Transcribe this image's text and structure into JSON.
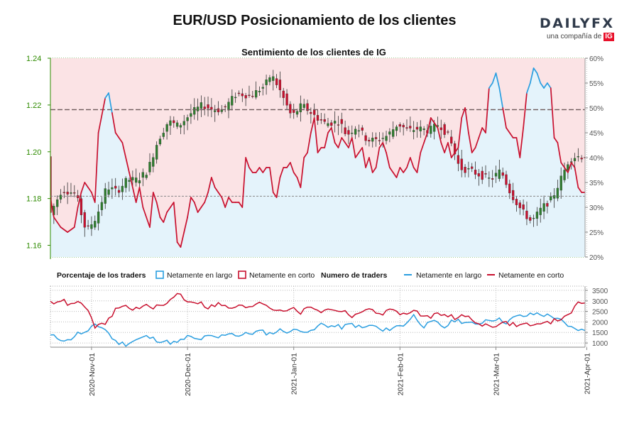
{
  "page": {
    "title": "EUR/USD Posicionamiento de los clientes",
    "brand_name": "DAILYFX",
    "brand_subtitle": "una compañía de",
    "brand_badge": "IG"
  },
  "colors": {
    "long": "#2a9ee0",
    "short": "#c8102e",
    "long_area": "#e4f3fb",
    "short_area": "#fbe3e5",
    "candle_up": "#2e7d2e",
    "candle_down": "#c8102e",
    "price_axis": "#2e8b00",
    "grid_green": "#4a9a2a"
  },
  "chart_data": [
    {
      "type": "candlestick+line",
      "title": "Sentimiento de los clientes de IG",
      "x_ticks": [
        "2020-Nov-01",
        "2020-Dec-01",
        "2021-Jan-01",
        "2021-Feb-01",
        "2021-Mar-01",
        "2021-Apr-01"
      ],
      "price_axis": {
        "side": "left",
        "ylim": [
          1.155,
          1.24
        ],
        "ticks": [
          "1.24",
          "1.22",
          "1.20",
          "1.18",
          "1.16"
        ]
      },
      "sentiment_axis": {
        "side": "right",
        "ylim": [
          20,
          60
        ],
        "ticks": [
          "60%",
          "55%",
          "50%",
          "45%",
          "40%",
          "35%",
          "30%",
          "25%",
          "20%"
        ]
      },
      "reference_price": 1.218,
      "last_price_line": 1.181,
      "price_anchors": [
        [
          0,
          1.172
        ],
        [
          4,
          1.184
        ],
        [
          8,
          1.182
        ],
        [
          11,
          1.166
        ],
        [
          14,
          1.172
        ],
        [
          17,
          1.185
        ],
        [
          20,
          1.183
        ],
        [
          23,
          1.188
        ],
        [
          26,
          1.188
        ],
        [
          29,
          1.192
        ],
        [
          32,
          1.205
        ],
        [
          35,
          1.213
        ],
        [
          38,
          1.211
        ],
        [
          42,
          1.217
        ],
        [
          45,
          1.22
        ],
        [
          48,
          1.218
        ],
        [
          51,
          1.218
        ],
        [
          55,
          1.225
        ],
        [
          59,
          1.224
        ],
        [
          63,
          1.228
        ],
        [
          65,
          1.233
        ],
        [
          67,
          1.228
        ],
        [
          71,
          1.215
        ],
        [
          74,
          1.22
        ],
        [
          78,
          1.215
        ],
        [
          81,
          1.212
        ],
        [
          85,
          1.213
        ],
        [
          87,
          1.207
        ],
        [
          90,
          1.211
        ],
        [
          93,
          1.205
        ],
        [
          96,
          1.205
        ],
        [
          99,
          1.207
        ],
        [
          102,
          1.212
        ],
        [
          105,
          1.209
        ],
        [
          108,
          1.21
        ],
        [
          111,
          1.209
        ],
        [
          114,
          1.212
        ],
        [
          117,
          1.206
        ],
        [
          120,
          1.193
        ],
        [
          123,
          1.192
        ],
        [
          126,
          1.19
        ],
        [
          129,
          1.188
        ],
        [
          132,
          1.192
        ],
        [
          135,
          1.182
        ],
        [
          138,
          1.175
        ],
        [
          141,
          1.17
        ],
        [
          144,
          1.176
        ],
        [
          147,
          1.18
        ],
        [
          150,
          1.19
        ],
        [
          152,
          1.197
        ],
        [
          154,
          1.198
        ],
        [
          156,
          1.198
        ]
      ],
      "sentiment_net_long_pct": [
        [
          0,
          32
        ],
        [
          1,
          28
        ],
        [
          3,
          26
        ],
        [
          5,
          25
        ],
        [
          7,
          26
        ],
        [
          8,
          30
        ],
        [
          9,
          33
        ],
        [
          10,
          35
        ],
        [
          11,
          34
        ],
        [
          12,
          33
        ],
        [
          13,
          31
        ],
        [
          14,
          45
        ],
        [
          16,
          52
        ],
        [
          17,
          53
        ],
        [
          18,
          49
        ],
        [
          19,
          45
        ],
        [
          21,
          43
        ],
        [
          23,
          37
        ],
        [
          25,
          31
        ],
        [
          26,
          34
        ],
        [
          27,
          30
        ],
        [
          29,
          26
        ],
        [
          30,
          33
        ],
        [
          31,
          31
        ],
        [
          32,
          28
        ],
        [
          33,
          27
        ],
        [
          34,
          29
        ],
        [
          35,
          30
        ],
        [
          36,
          31
        ],
        [
          37,
          23
        ],
        [
          38,
          22
        ],
        [
          39,
          25
        ],
        [
          40,
          28
        ],
        [
          41,
          32
        ],
        [
          42,
          31
        ],
        [
          43,
          29
        ],
        [
          44,
          30
        ],
        [
          45,
          31
        ],
        [
          46,
          33
        ],
        [
          47,
          36
        ],
        [
          48,
          34
        ],
        [
          49,
          33
        ],
        [
          50,
          32
        ],
        [
          51,
          30
        ],
        [
          52,
          32
        ],
        [
          53,
          31
        ],
        [
          54,
          31
        ],
        [
          55,
          31
        ],
        [
          56,
          30
        ],
        [
          57,
          40
        ],
        [
          58,
          38
        ],
        [
          59,
          37
        ],
        [
          60,
          37
        ],
        [
          61,
          38
        ],
        [
          62,
          37
        ],
        [
          63,
          38
        ],
        [
          64,
          38
        ],
        [
          65,
          33
        ],
        [
          66,
          32
        ],
        [
          67,
          36
        ],
        [
          68,
          38
        ],
        [
          69,
          38
        ],
        [
          70,
          39
        ],
        [
          71,
          37
        ],
        [
          72,
          36
        ],
        [
          73,
          34
        ],
        [
          74,
          40
        ],
        [
          75,
          41
        ],
        [
          76,
          45
        ],
        [
          77,
          48
        ],
        [
          78,
          41
        ],
        [
          79,
          42
        ],
        [
          80,
          42
        ],
        [
          81,
          45
        ],
        [
          82,
          46
        ],
        [
          83,
          43
        ],
        [
          84,
          42
        ],
        [
          85,
          44
        ],
        [
          86,
          43
        ],
        [
          87,
          42
        ],
        [
          88,
          44
        ],
        [
          89,
          40
        ],
        [
          90,
          41
        ],
        [
          91,
          42
        ],
        [
          92,
          38
        ],
        [
          93,
          40
        ],
        [
          94,
          37
        ],
        [
          95,
          38
        ],
        [
          96,
          42
        ],
        [
          97,
          43
        ],
        [
          98,
          41
        ],
        [
          99,
          38
        ],
        [
          100,
          37
        ],
        [
          101,
          36
        ],
        [
          102,
          38
        ],
        [
          103,
          37
        ],
        [
          104,
          38
        ],
        [
          105,
          40
        ],
        [
          106,
          38
        ],
        [
          107,
          37
        ],
        [
          108,
          41
        ],
        [
          109,
          43
        ],
        [
          110,
          45
        ],
        [
          111,
          48
        ],
        [
          112,
          47
        ],
        [
          113,
          46
        ],
        [
          114,
          43
        ],
        [
          115,
          41
        ],
        [
          116,
          43
        ],
        [
          117,
          40
        ],
        [
          118,
          41
        ],
        [
          119,
          42
        ],
        [
          120,
          48
        ],
        [
          121,
          50
        ],
        [
          122,
          45
        ],
        [
          123,
          41
        ],
        [
          124,
          42
        ],
        [
          125,
          44
        ],
        [
          126,
          46
        ],
        [
          127,
          45
        ],
        [
          128,
          54
        ],
        [
          129,
          55
        ],
        [
          130,
          57
        ],
        [
          131,
          54
        ],
        [
          132,
          50
        ],
        [
          133,
          46
        ],
        [
          134,
          45
        ],
        [
          135,
          44
        ],
        [
          136,
          44
        ],
        [
          137,
          40
        ],
        [
          138,
          46
        ],
        [
          139,
          53
        ],
        [
          140,
          55
        ],
        [
          141,
          58
        ],
        [
          142,
          57
        ],
        [
          143,
          55
        ],
        [
          144,
          54
        ],
        [
          145,
          55
        ],
        [
          146,
          54
        ],
        [
          147,
          44
        ],
        [
          148,
          43
        ],
        [
          149,
          39
        ],
        [
          150,
          38
        ],
        [
          151,
          37
        ],
        [
          152,
          39
        ],
        [
          153,
          38
        ],
        [
          154,
          34
        ],
        [
          155,
          33
        ],
        [
          156,
          33
        ]
      ],
      "legend": {
        "title": "Porcentaje de los traders",
        "items": [
          "Netamente en largo",
          "Netamente en corto"
        ]
      }
    },
    {
      "type": "line",
      "title": "Numero de traders",
      "y_axis": {
        "side": "right",
        "ylim": [
          800,
          3700
        ],
        "ticks": [
          "3500",
          "3000",
          "2500",
          "2000",
          "1500",
          "1000"
        ]
      },
      "series": [
        {
          "name": "Netamente en largo",
          "values": [
            [
              0,
              1350
            ],
            [
              5,
              1100
            ],
            [
              8,
              1450
            ],
            [
              11,
              1500
            ],
            [
              13,
              1900
            ],
            [
              16,
              1650
            ],
            [
              19,
              1050
            ],
            [
              22,
              950
            ],
            [
              25,
              1150
            ],
            [
              28,
              1300
            ],
            [
              31,
              1150
            ],
            [
              34,
              1050
            ],
            [
              37,
              1000
            ],
            [
              40,
              1300
            ],
            [
              43,
              1150
            ],
            [
              46,
              1300
            ],
            [
              49,
              1250
            ],
            [
              52,
              1500
            ],
            [
              55,
              1350
            ],
            [
              58,
              1450
            ],
            [
              61,
              1550
            ],
            [
              64,
              1450
            ],
            [
              67,
              1600
            ],
            [
              70,
              1550
            ],
            [
              73,
              1650
            ],
            [
              76,
              1500
            ],
            [
              79,
              1900
            ],
            [
              82,
              1800
            ],
            [
              85,
              1750
            ],
            [
              88,
              1900
            ],
            [
              91,
              1700
            ],
            [
              94,
              1850
            ],
            [
              97,
              1550
            ],
            [
              100,
              1750
            ],
            [
              103,
              1850
            ],
            [
              106,
              2300
            ],
            [
              109,
              1800
            ],
            [
              112,
              2000
            ],
            [
              115,
              1750
            ],
            [
              118,
              2100
            ],
            [
              121,
              2000
            ],
            [
              124,
              1850
            ],
            [
              127,
              2100
            ],
            [
              130,
              2150
            ],
            [
              133,
              2000
            ],
            [
              136,
              2250
            ],
            [
              139,
              2300
            ],
            [
              142,
              2400
            ],
            [
              145,
              2300
            ],
            [
              148,
              2200
            ],
            [
              151,
              1750
            ],
            [
              154,
              1650
            ],
            [
              156,
              1550
            ]
          ]
        },
        {
          "name": "Netamente en corto",
          "values": [
            [
              0,
              2900
            ],
            [
              3,
              3050
            ],
            [
              6,
              2800
            ],
            [
              9,
              2950
            ],
            [
              11,
              2450
            ],
            [
              13,
              1800
            ],
            [
              16,
              1850
            ],
            [
              19,
              2600
            ],
            [
              22,
              2750
            ],
            [
              25,
              2600
            ],
            [
              28,
              2750
            ],
            [
              31,
              2700
            ],
            [
              34,
              2850
            ],
            [
              37,
              3400
            ],
            [
              40,
              3000
            ],
            [
              43,
              2950
            ],
            [
              46,
              2700
            ],
            [
              49,
              2850
            ],
            [
              52,
              2650
            ],
            [
              55,
              2750
            ],
            [
              58,
              2650
            ],
            [
              61,
              3000
            ],
            [
              64,
              2700
            ],
            [
              67,
              2550
            ],
            [
              70,
              2650
            ],
            [
              73,
              2450
            ],
            [
              76,
              2750
            ],
            [
              79,
              2500
            ],
            [
              82,
              2600
            ],
            [
              85,
              2550
            ],
            [
              88,
              2300
            ],
            [
              91,
              2500
            ],
            [
              94,
              2550
            ],
            [
              97,
              2400
            ],
            [
              100,
              2600
            ],
            [
              103,
              2350
            ],
            [
              106,
              2500
            ],
            [
              109,
              2250
            ],
            [
              112,
              2300
            ],
            [
              115,
              2450
            ],
            [
              118,
              2150
            ],
            [
              121,
              2300
            ],
            [
              124,
              2000
            ],
            [
              127,
              1850
            ],
            [
              130,
              1850
            ],
            [
              133,
              1950
            ],
            [
              136,
              1850
            ],
            [
              139,
              1900
            ],
            [
              142,
              1850
            ],
            [
              145,
              1950
            ],
            [
              148,
              2100
            ],
            [
              151,
              2350
            ],
            [
              154,
              2850
            ],
            [
              156,
              2950
            ]
          ]
        }
      ]
    }
  ]
}
